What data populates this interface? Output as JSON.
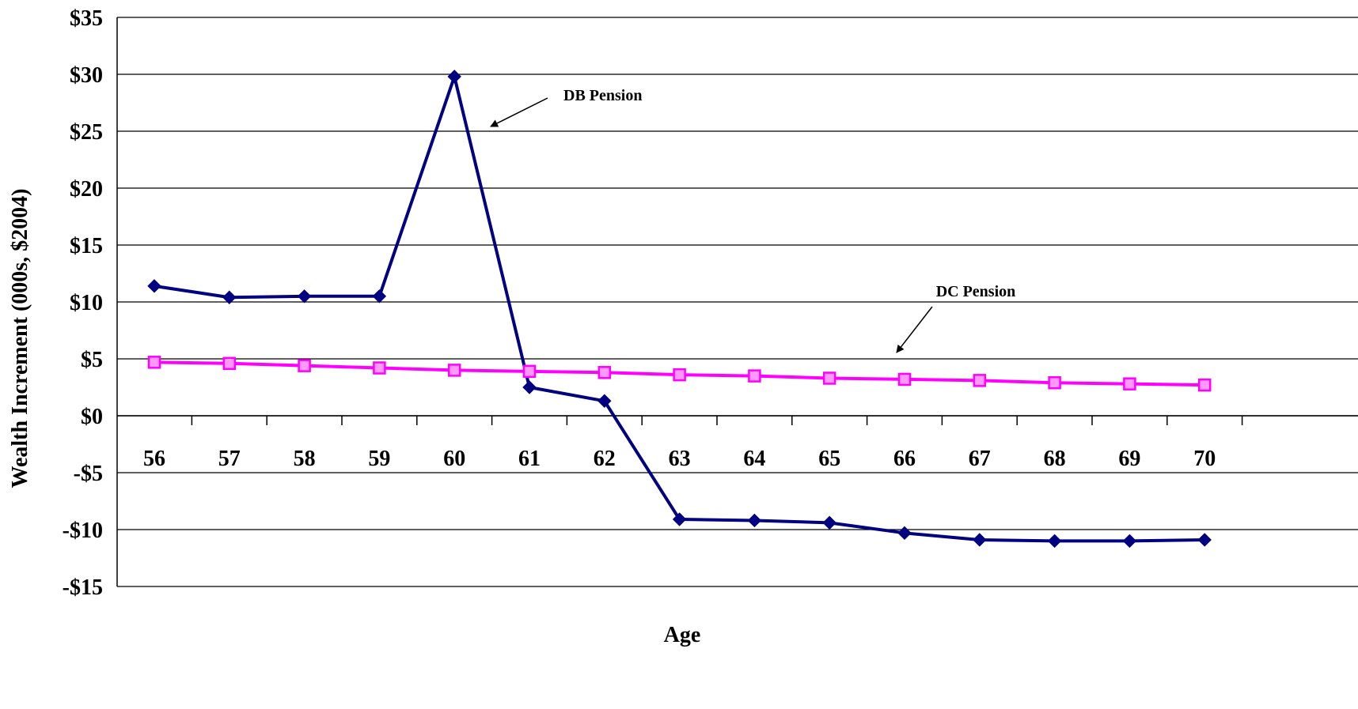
{
  "chart_data": {
    "type": "line",
    "x": [
      56,
      57,
      58,
      59,
      60,
      61,
      62,
      63,
      64,
      65,
      66,
      67,
      68,
      69,
      70
    ],
    "categories": [
      "56",
      "57",
      "58",
      "59",
      "60",
      "61",
      "62",
      "63",
      "64",
      "65",
      "66",
      "67",
      "68",
      "69",
      "70"
    ],
    "xlabel": "Age",
    "ylabel": "Wealth Increment (000s, $2004)",
    "ylim": [
      -15,
      35
    ],
    "yticks": [
      35,
      30,
      25,
      20,
      15,
      10,
      5,
      0,
      -5,
      -10,
      -15
    ],
    "ytick_labels": [
      "$35",
      "$30",
      "$25",
      "$20",
      "$15",
      "$10",
      "$5",
      "$0",
      "-$5",
      "-$10",
      "-$15"
    ],
    "grid": "horizontal",
    "series": [
      {
        "name": "DB Pension",
        "color": "#000080",
        "marker": "diamond",
        "values": [
          11.4,
          10.4,
          10.5,
          10.5,
          29.8,
          2.5,
          1.3,
          -9.1,
          -9.2,
          -9.4,
          -10.3,
          -10.9,
          -11.0,
          -11.0,
          -10.9
        ]
      },
      {
        "name": "DC Pension",
        "color": "#FF00FF",
        "marker": "square",
        "values": [
          4.7,
          4.6,
          4.4,
          4.2,
          4.0,
          3.9,
          3.8,
          3.6,
          3.5,
          3.3,
          3.2,
          3.1,
          2.9,
          2.8,
          2.7
        ]
      }
    ],
    "annotations": [
      {
        "text": "DB Pension",
        "series": "DB Pension"
      },
      {
        "text": "DC Pension",
        "series": "DC Pension"
      }
    ]
  }
}
